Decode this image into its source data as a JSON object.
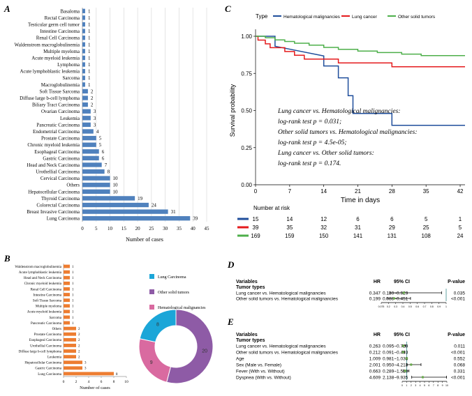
{
  "panel_labels": {
    "a": "A",
    "b": "B",
    "c": "C",
    "d": "D",
    "e": "E"
  },
  "colors": {
    "bar_a": "#4f81bd",
    "bar_b": "#ed7d31",
    "hema": "#1f4e9b",
    "lung": "#e41a1c",
    "other": "#4daf4a",
    "pie_lung": "#1ba6d8",
    "pie_other": "#8e5ba6",
    "pie_hema": "#d96aa0",
    "forest_line": "#3c8c8c",
    "forest_dot": "#6aa84f"
  },
  "chart_data": [
    {
      "id": "A",
      "type": "bar",
      "orientation": "horizontal",
      "categories": [
        "Basaloma",
        "Rectal Carcinoma",
        "Testicular germ cell tumor",
        "Intestine Carcinoma",
        "Renal Cell Carcinoma",
        "Waldenstrom macroglobulinemia",
        "Multiple myeloma",
        "Acute myeloid leukemia",
        "Lymphoma",
        "Acute lymphoblastic leukemia",
        "Sarcoma",
        "Macroglobulinemia",
        "Soft Tissue Sarcoma",
        "Diffuse large b-cell lymphoma",
        "Biliary Tract Carcinoma",
        "Ovarian Carcinoma",
        "Leukemia",
        "Pancreatic Carcinoma",
        "Endometrial Carcinoma",
        "Prostate Carcinoma",
        "Chronic myeloid leukemia",
        "Esophageal Carcinoma",
        "Gastric Carcinoma",
        "Head and Neck Carcinoma",
        "Urothellial Carcinoma",
        "Cervical Carcinoma",
        "Others",
        "Hepatocellular Carcinoma",
        "Thyroid Carcinoma",
        "Colorectal Carcinoma",
        "Breast Invasive Carcinoma",
        "Lung Carcinoma"
      ],
      "values": [
        1,
        1,
        1,
        1,
        1,
        1,
        1,
        1,
        1,
        1,
        1,
        1,
        2,
        2,
        2,
        3,
        3,
        3,
        4,
        5,
        5,
        6,
        6,
        7,
        8,
        10,
        10,
        10,
        19,
        24,
        31,
        39
      ],
      "xlabel": "Number of cases",
      "xlim": [
        0,
        45
      ],
      "xticks": [
        0,
        5,
        10,
        15,
        20,
        25,
        30,
        35,
        40,
        45
      ]
    },
    {
      "id": "B",
      "type": "bar",
      "orientation": "horizontal",
      "categories": [
        "Waldenstrom macroglobulinemia",
        "Acute lymphoblastic leukemia",
        "Head and Neck Carcinoma",
        "Chronic myeloid leukemia",
        "Renal Cell Carcinoma",
        "Intestine Carcinoma",
        "Soft Tissue Sarcoma",
        "Multiple myeloma",
        "Acute myeloid leukemia",
        "Sarcoma",
        "Pancreatic Carcinoma",
        "Others",
        "Prostate Carcinoma",
        "Esophageal Carcinoma",
        "Urothellial Carcinoma",
        "Diffuse large b-cell lymphoma",
        "Leukemia",
        "Hepatocellular Carcinoma",
        "Gastric Carcinoma",
        "Lung Carcinoma"
      ],
      "values": [
        1,
        1,
        1,
        1,
        1,
        1,
        1,
        1,
        1,
        1,
        1,
        2,
        2,
        2,
        2,
        2,
        2,
        3,
        3,
        8
      ],
      "xlabel": "Number of cases",
      "xlim": [
        0,
        10
      ],
      "xticks": [
        0,
        2,
        4,
        6,
        8,
        10
      ]
    },
    {
      "id": "B-pie",
      "type": "pie",
      "style": "donut",
      "legend": [
        "Lung Carcinoma",
        "Other solid tumors",
        "Hematological malignancies"
      ],
      "values": [
        8,
        20,
        9
      ]
    },
    {
      "id": "C",
      "type": "line",
      "title_key": "Type",
      "series": [
        {
          "name": "Hematological malignancies",
          "points": [
            [
              0,
              1
            ],
            [
              4,
              1
            ],
            [
              4,
              0.933
            ],
            [
              14,
              0.867
            ],
            [
              14,
              0.8
            ],
            [
              17,
              0.8
            ],
            [
              17,
              0.72
            ],
            [
              19,
              0.72
            ],
            [
              19,
              0.6
            ],
            [
              20,
              0.6
            ],
            [
              20,
              0.48
            ],
            [
              28,
              0.48
            ],
            [
              28,
              0.4
            ],
            [
              43,
              0.4
            ]
          ]
        },
        {
          "name": "Lung cancer",
          "points": [
            [
              0,
              1
            ],
            [
              0.5,
              1
            ],
            [
              0.5,
              0.974
            ],
            [
              2,
              0.974
            ],
            [
              2,
              0.949
            ],
            [
              3,
              0.949
            ],
            [
              3,
              0.923
            ],
            [
              6,
              0.923
            ],
            [
              6,
              0.897
            ],
            [
              8,
              0.897
            ],
            [
              8,
              0.872
            ],
            [
              10,
              0.872
            ],
            [
              10,
              0.846
            ],
            [
              17,
              0.846
            ],
            [
              17,
              0.82
            ],
            [
              28,
              0.82
            ],
            [
              28,
              0.795
            ],
            [
              43,
              0.795
            ]
          ]
        },
        {
          "name": "Other solid tumors",
          "points": [
            [
              0,
              1
            ],
            [
              2,
              1
            ],
            [
              2,
              0.99
            ],
            [
              4,
              0.99
            ],
            [
              4,
              0.975
            ],
            [
              6,
              0.975
            ],
            [
              6,
              0.965
            ],
            [
              8,
              0.965
            ],
            [
              8,
              0.953
            ],
            [
              11,
              0.953
            ],
            [
              11,
              0.94
            ],
            [
              14,
              0.94
            ],
            [
              14,
              0.925
            ],
            [
              17,
              0.925
            ],
            [
              17,
              0.912
            ],
            [
              21,
              0.912
            ],
            [
              21,
              0.9
            ],
            [
              25,
              0.9
            ],
            [
              25,
              0.89
            ],
            [
              30,
              0.89
            ],
            [
              30,
              0.88
            ],
            [
              34,
              0.88
            ],
            [
              34,
              0.87
            ],
            [
              43,
              0.87
            ]
          ]
        }
      ],
      "xlabel": "Time in days",
      "ylabel": "Survival probability",
      "xlim": [
        0,
        43
      ],
      "ylim": [
        0,
        1
      ],
      "xticks": [
        0,
        7,
        14,
        21,
        28,
        35,
        42
      ],
      "yticks": [
        "0.00",
        "0.25",
        "0.50",
        "0.75",
        "1.00"
      ],
      "annotation": [
        "Lung cancer vs. Hematological malignancies:",
        "log-rank test  p = 0.031;",
        "Other solid tumors vs. Hematological malignancies:",
        "log-rank test  p = 4.5e-05;",
        "Lung cancer vs. Other solid tumors:",
        "log-rank test  p =  0.174."
      ],
      "risk_table": {
        "title": "Number at risk",
        "rows": [
          {
            "series": "Hematological malignancies",
            "values": [
              15,
              14,
              12,
              6,
              6,
              5,
              1
            ]
          },
          {
            "series": "Lung cancer",
            "values": [
              39,
              35,
              32,
              31,
              29,
              25,
              5
            ]
          },
          {
            "series": "Other solid tumors",
            "values": [
              169,
              159,
              150,
              141,
              131,
              108,
              24
            ]
          }
        ]
      }
    },
    {
      "id": "D",
      "type": "table",
      "headers": [
        "Variables",
        "HR",
        "95% CI",
        "P-value"
      ],
      "subheader": "Tumor types",
      "rows": [
        {
          "label": "Lung cancer vs. Hematological malignancies",
          "hr": "0.347",
          "ci": "0.130~0.929",
          "p": "0.035",
          "hr_v": 0.347,
          "lo": 0.13,
          "hi": 0.929
        },
        {
          "label": "Other solid tumors vs. Hematological malignancies",
          "hr": "0.199",
          "ci": "0.088~0.451",
          "p": "<0.001",
          "hr_v": 0.199,
          "lo": 0.088,
          "hi": 0.451
        }
      ],
      "axis_ticks": [
        "0.075",
        "0.2",
        "0.3",
        "0.4",
        "0.5",
        "0.6",
        "0.7",
        "0.8",
        "0.9",
        "1"
      ],
      "xlim": [
        0,
        1
      ]
    },
    {
      "id": "E",
      "type": "table",
      "headers": [
        "Variables",
        "HR",
        "95% CI",
        "P-value"
      ],
      "subheader": "Tumor types",
      "rows": [
        {
          "label": "Lung cancer vs. Hematological malignancies",
          "hr": "0.263",
          "ci": "0.095~0.729",
          "p": "0.011",
          "hr_v": 0.263,
          "lo": 0.095,
          "hi": 0.729
        },
        {
          "label": "Other solid tumors vs. Hematological malignancies",
          "hr": "0.212",
          "ci": "0.091~0.493",
          "p": "<0.001",
          "hr_v": 0.212,
          "lo": 0.091,
          "hi": 0.493
        },
        {
          "label": "Age",
          "hr": "1.009",
          "ci": "0.981~1.038",
          "p": "0.552",
          "hr_v": 1.009,
          "lo": 0.981,
          "hi": 1.038
        },
        {
          "label": "Sex (Male vs. Female)",
          "hr": "2.001",
          "ci": "0.950~4.213",
          "p": "0.068",
          "hr_v": 2.001,
          "lo": 0.95,
          "hi": 4.213
        },
        {
          "label": "Fever (With vs. Without)",
          "hr": "0.663",
          "ci": "0.289~1.518",
          "p": "0.331",
          "hr_v": 0.663,
          "lo": 0.289,
          "hi": 1.518
        },
        {
          "label": "Dyspnea (With vs. Without)",
          "hr": "4.609",
          "ci": "2.138~9.935",
          "p": "<0.001",
          "hr_v": 4.609,
          "lo": 2.138,
          "hi": 9.935
        }
      ],
      "axis_ticks": [
        "0",
        "1",
        "2",
        "3",
        "4",
        "5",
        "6",
        "7",
        "8",
        "9",
        "10"
      ],
      "xlim": [
        0,
        10
      ]
    }
  ]
}
